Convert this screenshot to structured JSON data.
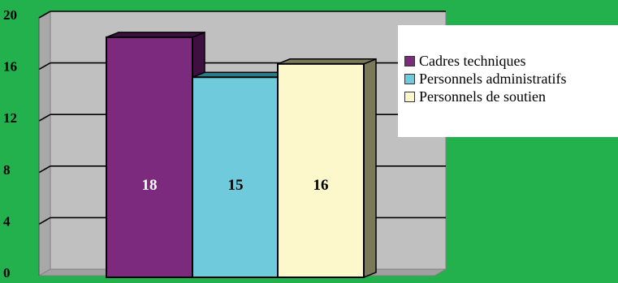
{
  "chart_data": {
    "type": "bar",
    "categories": [
      "Cadres techniques",
      "Personnels administratifs",
      "Personnels de soutien"
    ],
    "values": [
      18,
      15,
      16
    ],
    "colors": [
      "#7b2a7e",
      "#6fcbdc",
      "#fcf8cc"
    ],
    "side_colors": [
      "#3d1040",
      "#2a7c88",
      "#7a7a5a"
    ],
    "ylim": [
      0,
      20
    ],
    "yticks": [
      0,
      4,
      8,
      12,
      16,
      20
    ],
    "data_labels": [
      "18",
      "15",
      "16"
    ],
    "legend_position": "right",
    "style": "3d",
    "grid": true
  }
}
